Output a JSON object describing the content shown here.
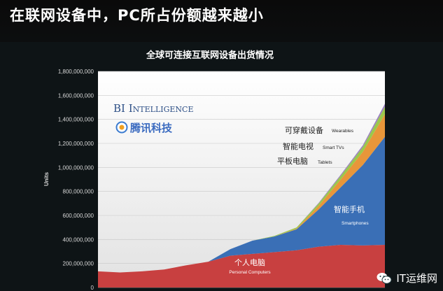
{
  "headline": "在联网设备中，PC所占份额越来越小",
  "watermark": {
    "text": "IT运维网",
    "icon": "wechat-icon"
  },
  "chart_data": {
    "type": "area",
    "stacked": true,
    "title": "全球可连接互联网设备出货情况",
    "ylabel": "Units",
    "xlabel": "",
    "ylim": [
      0,
      1800000000
    ],
    "yticks": [
      0,
      200000000,
      400000000,
      600000000,
      800000000,
      1000000000,
      1200000000,
      1400000000,
      1600000000,
      1800000000
    ],
    "ytick_labels": [
      "0",
      "200,000,000",
      "400,000,000",
      "600,000,000",
      "800,000,000",
      "1,000,000,000",
      "1,200,000,000",
      "1,400,000,000",
      "1,600,000,000",
      "1,800,000,000"
    ],
    "grid": true,
    "branding": {
      "en": "BI Intelligence",
      "cn": "腾讯科技"
    },
    "series": [
      {
        "name_cn": "个人电脑",
        "name_en": "Personal Computers",
        "color": "#c84040",
        "values": [
          135000000,
          125000000,
          135000000,
          150000000,
          185000000,
          215000000,
          265000000,
          280000000,
          295000000,
          310000000,
          340000000,
          355000000,
          350000000,
          355000000
        ]
      },
      {
        "name_cn": "智能手机",
        "name_en": "Smartphones",
        "color": "#3a6fb6",
        "values": [
          0,
          0,
          0,
          0,
          0,
          0,
          55000000,
          110000000,
          130000000,
          175000000,
          310000000,
          480000000,
          670000000,
          900000000
        ]
      },
      {
        "name_cn": "平板电脑",
        "name_en": "Tablets",
        "color": "#e8963a",
        "values": [
          0,
          0,
          0,
          0,
          0,
          0,
          0,
          0,
          0,
          5000000,
          30000000,
          65000000,
          110000000,
          190000000
        ]
      },
      {
        "name_cn": "智能电视",
        "name_en": "Smart TVs",
        "color": "#9bc84c",
        "values": [
          0,
          0,
          0,
          0,
          0,
          0,
          0,
          0,
          5000000,
          10000000,
          20000000,
          30000000,
          40000000,
          60000000
        ]
      },
      {
        "name_cn": "可穿戴设备",
        "name_en": "Wearables",
        "color": "#9a7fc0",
        "values": [
          0,
          0,
          0,
          0,
          0,
          0,
          0,
          0,
          0,
          0,
          5000000,
          10000000,
          15000000,
          25000000
        ]
      }
    ],
    "x": [
      0,
      1,
      2,
      3,
      4,
      5,
      6,
      7,
      8,
      9,
      10,
      11,
      12,
      13
    ]
  }
}
